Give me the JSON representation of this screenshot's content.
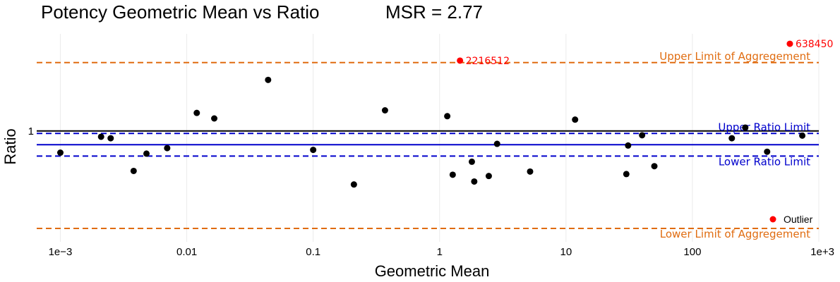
{
  "chart_data": {
    "type": "scatter",
    "title": "Potency Geometric Mean vs Ratio",
    "subtitle": "MSR = 2.77",
    "xlabel": "Geometric Mean",
    "ylabel": "Ratio",
    "x_scale": "log",
    "y_scale": "log",
    "xlim": [
      0.00065,
      1000
    ],
    "ylim": [
      0.2,
      4.1
    ],
    "x_ticks": [
      {
        "value": 0.001,
        "label": "1e−3"
      },
      {
        "value": 0.01,
        "label": "0.01"
      },
      {
        "value": 0.1,
        "label": "0.1"
      },
      {
        "value": 1,
        "label": "1"
      },
      {
        "value": 10,
        "label": "10"
      },
      {
        "value": 100,
        "label": "100"
      },
      {
        "value": 1000,
        "label": "1e+3"
      }
    ],
    "y_ticks": [
      {
        "value": 1,
        "label": "1"
      }
    ],
    "grid": true,
    "reference_lines": [
      {
        "name": "Upper Limit of Aggregement",
        "value": 2.7,
        "color": "#E06C10",
        "style": "dashed",
        "label_pos": "above"
      },
      {
        "name": "",
        "value": 1.0,
        "color": "#000000",
        "style": "solid",
        "label_pos": "none"
      },
      {
        "name": "Upper Ratio Limit",
        "value": 0.965,
        "color": "#0000CC",
        "style": "dashed",
        "label_pos": "above"
      },
      {
        "name": "",
        "value": 0.82,
        "color": "#0000CC",
        "style": "solid",
        "label_pos": "none"
      },
      {
        "name": "Lower Ratio Limit",
        "value": 0.695,
        "color": "#0000CC",
        "style": "dashed",
        "label_pos": "below"
      },
      {
        "name": "Lower Limit of Aggregement",
        "value": 0.243,
        "color": "#E06C10",
        "style": "dashed",
        "label_pos": "below"
      }
    ],
    "series": [
      {
        "name": "",
        "color": "#000000",
        "points": [
          {
            "x": 0.001,
            "y": 0.73
          },
          {
            "x": 0.0021,
            "y": 0.92
          },
          {
            "x": 0.0025,
            "y": 0.9
          },
          {
            "x": 0.0038,
            "y": 0.56
          },
          {
            "x": 0.0048,
            "y": 0.72
          },
          {
            "x": 0.007,
            "y": 0.78
          },
          {
            "x": 0.012,
            "y": 1.3
          },
          {
            "x": 0.0165,
            "y": 1.2
          },
          {
            "x": 0.044,
            "y": 2.1
          },
          {
            "x": 0.1,
            "y": 0.76
          },
          {
            "x": 0.21,
            "y": 0.46
          },
          {
            "x": 0.37,
            "y": 1.35
          },
          {
            "x": 1.15,
            "y": 1.24
          },
          {
            "x": 1.27,
            "y": 0.53
          },
          {
            "x": 1.8,
            "y": 0.64
          },
          {
            "x": 1.88,
            "y": 0.48
          },
          {
            "x": 2.45,
            "y": 0.52
          },
          {
            "x": 2.85,
            "y": 0.83
          },
          {
            "x": 5.2,
            "y": 0.555
          },
          {
            "x": 11.8,
            "y": 1.18
          },
          {
            "x": 30,
            "y": 0.535
          },
          {
            "x": 31,
            "y": 0.81
          },
          {
            "x": 40,
            "y": 0.94
          },
          {
            "x": 50,
            "y": 0.6
          },
          {
            "x": 205,
            "y": 0.9
          },
          {
            "x": 262,
            "y": 1.05
          },
          {
            "x": 390,
            "y": 0.74
          },
          {
            "x": 740,
            "y": 0.935
          }
        ]
      },
      {
        "name": "Outlier",
        "color": "#FF0000",
        "points": [
          {
            "x": 1.45,
            "y": 2.78,
            "label": "2216512"
          },
          {
            "x": 590,
            "y": 3.55,
            "label": "638450"
          }
        ]
      }
    ],
    "legend": {
      "position": "bottom-right",
      "entries": [
        "Outlier"
      ]
    }
  }
}
